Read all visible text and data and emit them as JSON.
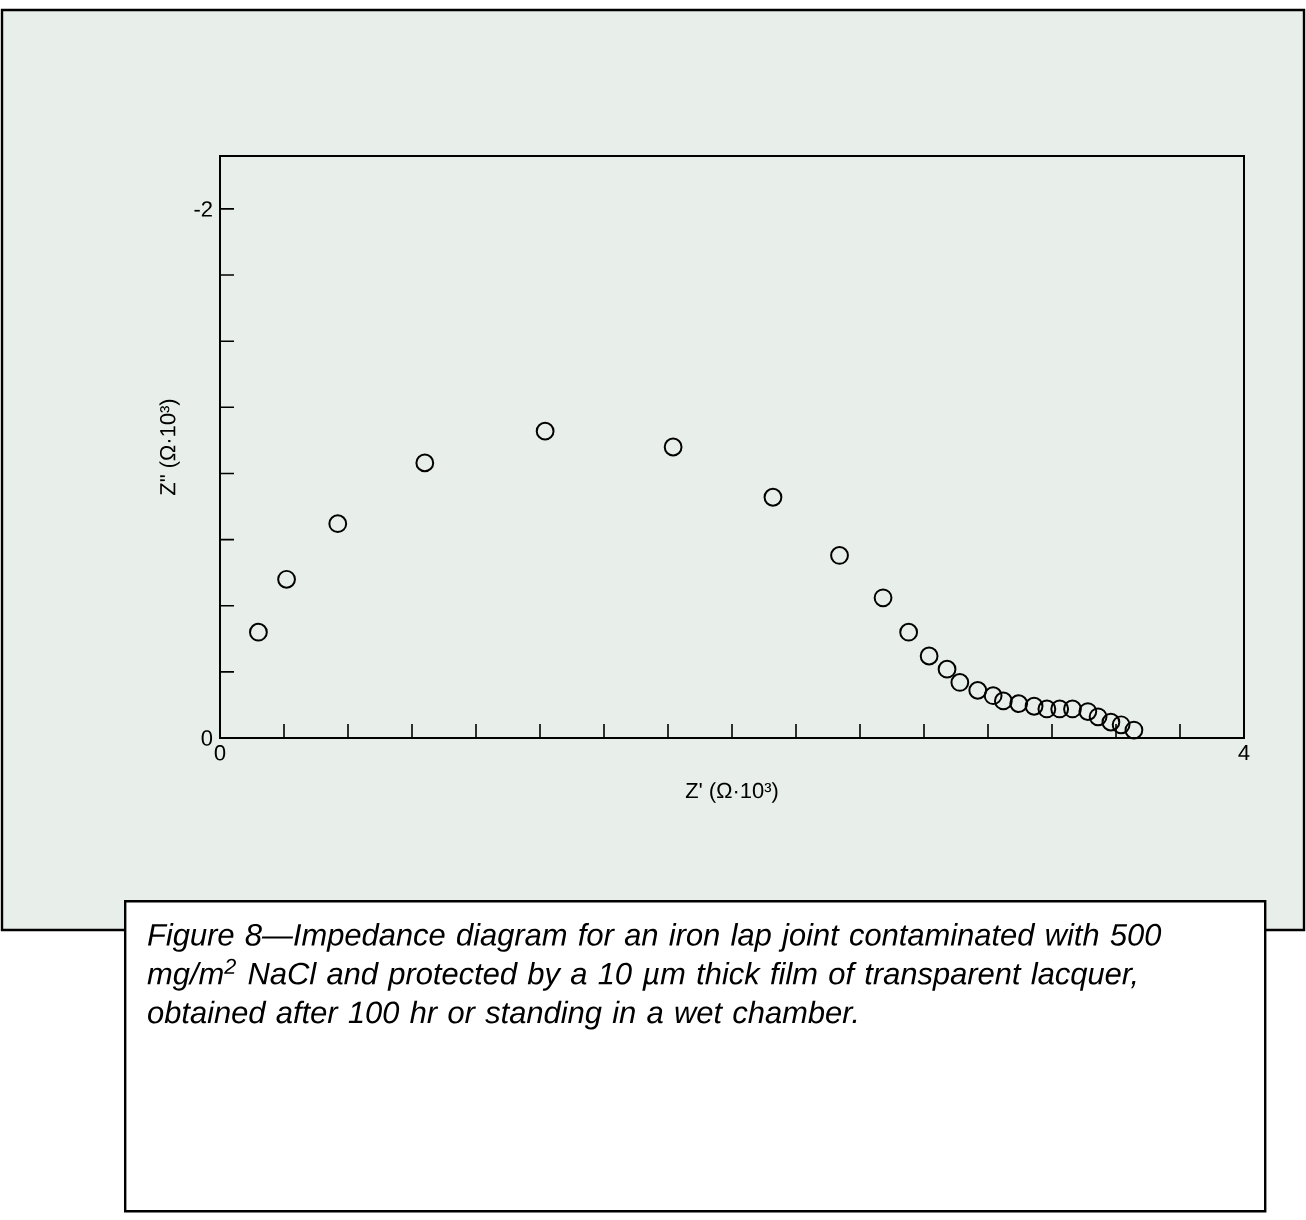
{
  "chart_data": {
    "type": "scatter",
    "xlabel": "Z'  (Ω·10³)",
    "ylabel": "Z\"  (Ω·10³)",
    "marker": "circle",
    "grid": false,
    "xlim": [
      0,
      4
    ],
    "ylim": [
      0,
      -2.2
    ],
    "xticks": [
      0,
      {
        "value": 0.25,
        "label": null
      },
      {
        "value": 0.5,
        "label": null
      },
      {
        "value": 0.75,
        "label": null
      },
      {
        "value": 1,
        "label": null
      },
      {
        "value": 1.25,
        "label": null
      },
      {
        "value": 1.5,
        "label": null
      },
      {
        "value": 1.75,
        "label": null
      },
      {
        "value": 2,
        "label": null
      },
      {
        "value": 2.25,
        "label": null
      },
      {
        "value": 2.5,
        "label": null
      },
      {
        "value": 2.75,
        "label": null
      },
      {
        "value": 3,
        "label": null
      },
      {
        "value": 3.25,
        "label": null
      },
      {
        "value": 3.5,
        "label": null
      },
      {
        "value": 3.75,
        "label": null
      },
      4
    ],
    "yticks": [
      0,
      {
        "value": -0.25,
        "label": null
      },
      {
        "value": -0.5,
        "label": null
      },
      {
        "value": -0.75,
        "label": null
      },
      {
        "value": -1,
        "label": null
      },
      {
        "value": -1.25,
        "label": null
      },
      {
        "value": -1.5,
        "label": null
      },
      {
        "value": -1.75,
        "label": null
      },
      -2
    ],
    "series": [
      {
        "color": "#000000",
        "x": [
          0.15,
          0.26,
          0.46,
          0.8,
          1.27,
          1.77,
          2.16,
          2.42,
          2.59,
          2.69,
          2.77,
          2.84,
          2.89,
          2.96,
          3.02,
          3.06,
          3.12,
          3.18,
          3.23,
          3.28,
          3.33,
          3.39,
          3.43,
          3.48,
          3.52,
          3.57
        ],
        "values": [
          -0.4,
          -0.6,
          -0.81,
          -1.04,
          -1.16,
          -1.1,
          -0.91,
          -0.69,
          -0.53,
          -0.4,
          -0.31,
          -0.26,
          -0.21,
          -0.18,
          -0.16,
          -0.14,
          -0.13,
          -0.12,
          -0.11,
          -0.11,
          -0.11,
          -0.1,
          -0.08,
          -0.06,
          -0.05,
          -0.03
        ]
      }
    ],
    "annotations": [
      "Figure 8—Impedance diagram for an iron lap joint contaminated with 500 mg/m$^{2}$ NaCl and protected by a 10 µm thick film of transparent lacquer, obtained after 100 hr or standing in a wet chamber."
    ]
  }
}
